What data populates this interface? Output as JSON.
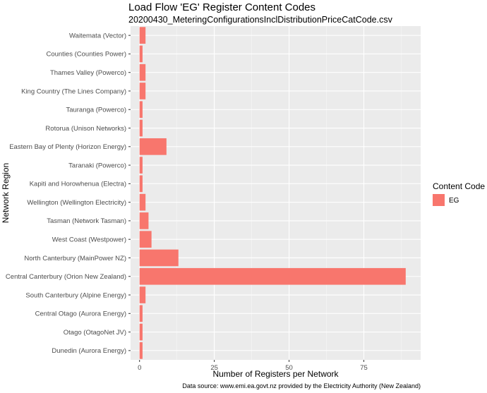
{
  "chart_data": {
    "type": "bar",
    "orientation": "horizontal",
    "title": "Load Flow 'EG' Register Content Codes",
    "subtitle": "20200430_MeteringConfigurationsInclDistributionPriceCatCode.csv",
    "xlabel": "Number of Registers per Network",
    "ylabel": "Network Region",
    "caption": "Data source: www.emi.ea.govt.nz provided by the Electricity Authority (New Zealand)",
    "xlim": [
      -3,
      94
    ],
    "xticks": [
      0,
      25,
      50,
      75
    ],
    "grid": true,
    "legend": {
      "title": "Content Code",
      "position": "right",
      "items": [
        {
          "label": "EG",
          "color": "#F8766D"
        }
      ]
    },
    "categories": [
      "Waitemata (Vector)",
      "Counties (Counties Power)",
      "Thames Valley (Powerco)",
      "King Country (The Lines Company)",
      "Tauranga (Powerco)",
      "Rotorua (Unison Networks)",
      "Eastern Bay of Plenty (Horizon Energy)",
      "Taranaki (Powerco)",
      "Kapiti and Horowhenua (Electra)",
      "Wellington (Wellington Electricity)",
      "Tasman (Network Tasman)",
      "West Coast (Westpower)",
      "North Canterbury (MainPower NZ)",
      "Central Canterbury (Orion New Zealand)",
      "South Canterbury (Alpine Energy)",
      "Central Otago (Aurora Energy)",
      "Otago (OtagoNet JV)",
      "Dunedin (Aurora Energy)"
    ],
    "series": [
      {
        "name": "EG",
        "color": "#F8766D",
        "values": [
          2,
          1,
          2,
          2,
          1,
          1,
          9,
          1,
          1,
          2,
          3,
          4,
          13,
          89,
          2,
          1,
          1,
          1
        ]
      }
    ]
  },
  "colors": {
    "panel_background": "#EBEBEB",
    "grid_major": "#FFFFFF",
    "bar_fill": "#F8766D"
  }
}
